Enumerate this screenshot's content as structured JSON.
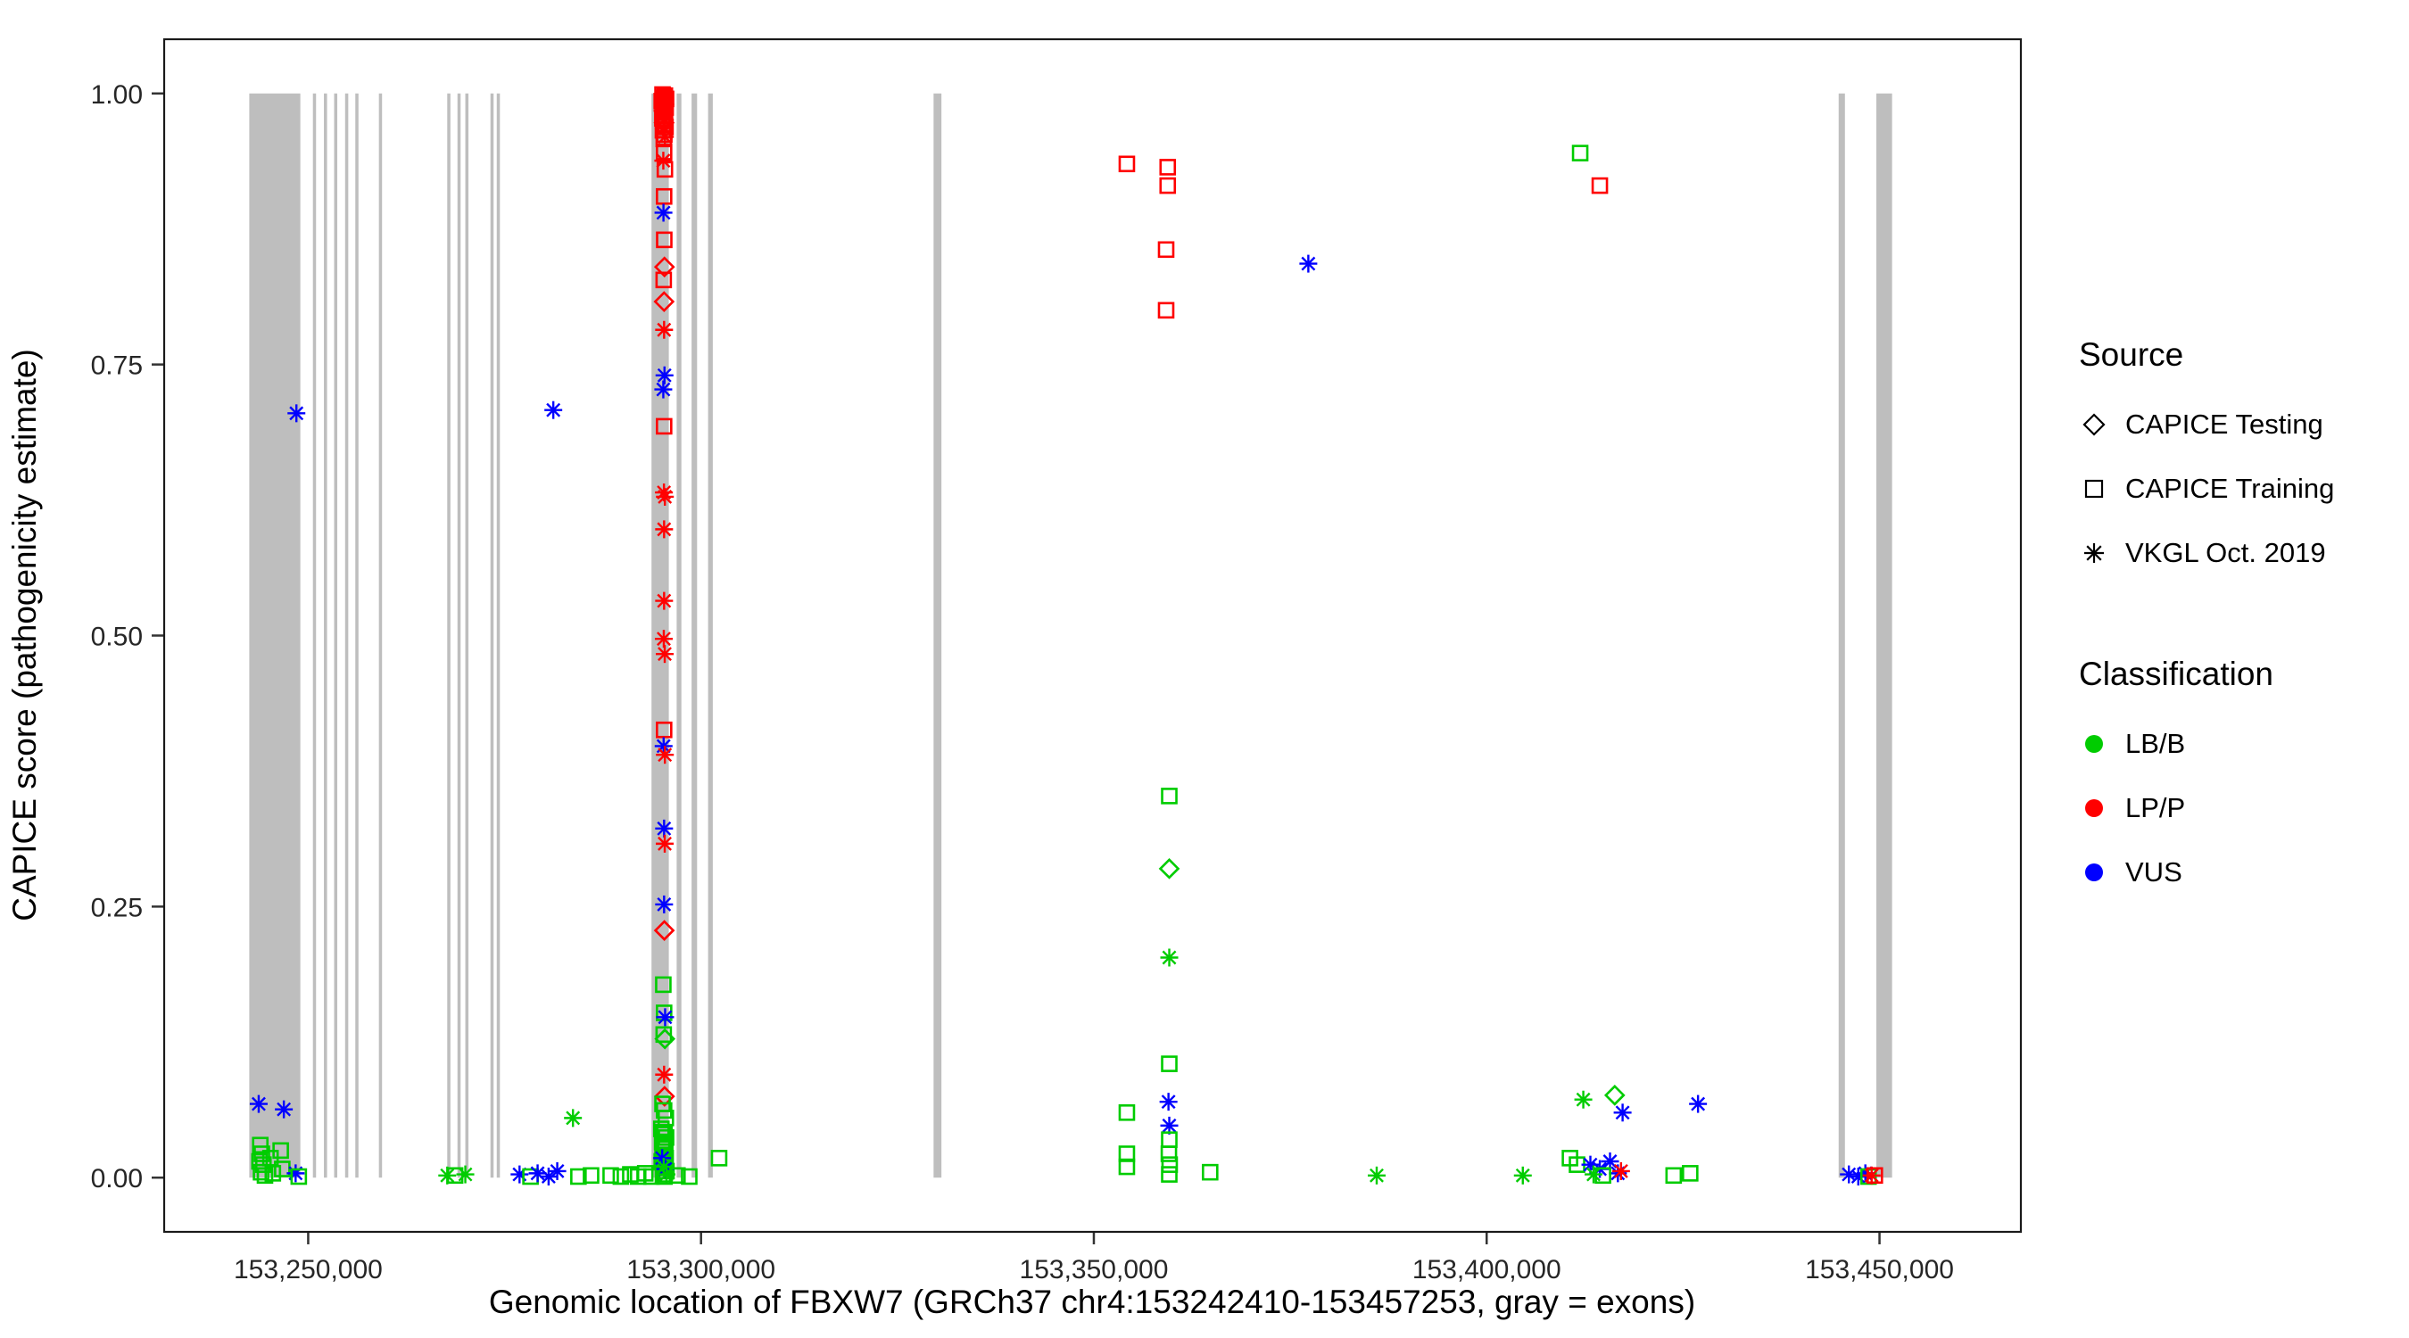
{
  "legend": {
    "source": {
      "title": "Source",
      "items": [
        {
          "label": "CAPICE Testing",
          "marker": "diamond"
        },
        {
          "label": "CAPICE Training",
          "marker": "square"
        },
        {
          "label": "VKGL Oct. 2019",
          "marker": "asterisk"
        }
      ]
    },
    "classification": {
      "title": "Classification",
      "items": [
        {
          "label": "LB/B",
          "color": "#00CC00"
        },
        {
          "label": "LP/P",
          "color": "#FF0000"
        },
        {
          "label": "VUS",
          "color": "#0000FF"
        }
      ]
    }
  },
  "chart_data": {
    "type": "scatter",
    "title": "",
    "xlabel": "Genomic location of FBXW7 (GRCh37 chr4:153242410-153457253, gray = exons)",
    "ylabel": "CAPICE score (pathogenicity estimate)",
    "x_domain": [
      153231668,
      153467995
    ],
    "y_domain": [
      -0.05,
      1.05
    ],
    "grid": false,
    "legend_position": "right",
    "xticks": [
      {
        "value": 153250000,
        "label": "153,250,000"
      },
      {
        "value": 153300000,
        "label": "153,300,000"
      },
      {
        "value": 153350000,
        "label": "153,350,000"
      },
      {
        "value": 153400000,
        "label": "153,400,000"
      },
      {
        "value": 153450000,
        "label": "153,450,000"
      }
    ],
    "yticks": [
      {
        "value": 0.0,
        "label": "0.00"
      },
      {
        "value": 0.25,
        "label": "0.25"
      },
      {
        "value": 0.5,
        "label": "0.50"
      },
      {
        "value": 0.75,
        "label": "0.75"
      },
      {
        "value": 1.0,
        "label": "1.00"
      }
    ],
    "colors": {
      "LB/B": "#00CC00",
      "LP/P": "#FF0000",
      "VUS": "#0000FF",
      "exon": "#BEBEBE"
    },
    "class_codes": {
      "B": "LB/B",
      "P": "LP/P",
      "U": "VUS"
    },
    "source_codes": {
      "T": "CAPICE Testing",
      "R": "CAPICE Training",
      "V": "VKGL Oct. 2019"
    },
    "marker_for_source": {
      "CAPICE Testing": "diamond",
      "CAPICE Training": "square",
      "VKGL Oct. 2019": "asterisk"
    },
    "exons": [
      [
        153242500,
        153249000
      ],
      [
        153250600,
        153251000
      ],
      [
        153252000,
        153252400
      ],
      [
        153253300,
        153253700
      ],
      [
        153254700,
        153255100
      ],
      [
        153256000,
        153256400
      ],
      [
        153259000,
        153259400
      ],
      [
        153267700,
        153268100
      ],
      [
        153269000,
        153269400
      ],
      [
        153270000,
        153270400
      ],
      [
        153273200,
        153273600
      ],
      [
        153274000,
        153274400
      ],
      [
        153293700,
        153295900
      ],
      [
        153296900,
        153297500
      ],
      [
        153298800,
        153299500
      ],
      [
        153300900,
        153301500
      ],
      [
        153329600,
        153330600
      ],
      [
        153444800,
        153445600
      ],
      [
        153449600,
        153451600
      ]
    ],
    "points": [
      [
        153243700,
        0.068,
        "U",
        "V"
      ],
      [
        153246900,
        0.063,
        "U",
        "V"
      ],
      [
        153243900,
        0.03,
        "B",
        "R"
      ],
      [
        153244100,
        0.022,
        "B",
        "R"
      ],
      [
        153243800,
        0.015,
        "B",
        "R"
      ],
      [
        153244300,
        0.012,
        "B",
        "R"
      ],
      [
        153244000,
        0.005,
        "B",
        "R"
      ],
      [
        153244500,
        0.002,
        "B",
        "R"
      ],
      [
        153245200,
        0.018,
        "B",
        "R"
      ],
      [
        153245500,
        0.004,
        "B",
        "R"
      ],
      [
        153246500,
        0.025,
        "B",
        "R"
      ],
      [
        153246700,
        0.008,
        "B",
        "R"
      ],
      [
        153248400,
        0.004,
        "U",
        "V"
      ],
      [
        153248800,
        0.001,
        "B",
        "R"
      ],
      [
        153248500,
        0.705,
        "U",
        "V"
      ],
      [
        153267700,
        0.002,
        "B",
        "V"
      ],
      [
        153268700,
        0.002,
        "B",
        "R"
      ],
      [
        153270000,
        0.003,
        "B",
        "V"
      ],
      [
        153276900,
        0.003,
        "U",
        "V"
      ],
      [
        153278300,
        0.001,
        "B",
        "R"
      ],
      [
        153279200,
        0.004,
        "U",
        "V"
      ],
      [
        153280600,
        0.001,
        "U",
        "V"
      ],
      [
        153281700,
        0.006,
        "U",
        "V"
      ],
      [
        153281200,
        0.708,
        "U",
        "V"
      ],
      [
        153283700,
        0.055,
        "B",
        "V"
      ],
      [
        153284400,
        0.001,
        "B",
        "R"
      ],
      [
        153286000,
        0.002,
        "B",
        "R"
      ],
      [
        153288500,
        0.002,
        "B",
        "R"
      ],
      [
        153289800,
        0.001,
        "B",
        "R"
      ],
      [
        153291000,
        0.003,
        "B",
        "R"
      ],
      [
        153292000,
        0.001,
        "B",
        "R"
      ],
      [
        153292900,
        0.004,
        "B",
        "R"
      ],
      [
        153293700,
        0.001,
        "B",
        "R"
      ],
      [
        153295100,
        0.999,
        "P",
        "R"
      ],
      [
        153295400,
        0.998,
        "P",
        "R"
      ],
      [
        153295250,
        0.996,
        "P",
        "R"
      ],
      [
        153295550,
        0.995,
        "P",
        "R"
      ],
      [
        153295000,
        0.993,
        "P",
        "R"
      ],
      [
        153295350,
        0.991,
        "P",
        "R"
      ],
      [
        153295200,
        0.989,
        "P",
        "R"
      ],
      [
        153295500,
        0.987,
        "P",
        "R"
      ],
      [
        153295120,
        0.985,
        "P",
        "R"
      ],
      [
        153295420,
        0.983,
        "P",
        "R"
      ],
      [
        153295280,
        0.98,
        "P",
        "R"
      ],
      [
        153295080,
        0.977,
        "P",
        "R"
      ],
      [
        153295380,
        0.975,
        "P",
        "R"
      ],
      [
        153295220,
        0.972,
        "P",
        "R"
      ],
      [
        153295480,
        0.969,
        "P",
        "R"
      ],
      [
        153295150,
        0.966,
        "P",
        "R"
      ],
      [
        153295330,
        0.962,
        "P",
        "R"
      ],
      [
        153295260,
        0.958,
        "P",
        "R"
      ],
      [
        153295200,
        0.997,
        "P",
        "V"
      ],
      [
        153295450,
        0.99,
        "P",
        "V"
      ],
      [
        153295100,
        0.984,
        "P",
        "V"
      ],
      [
        153295350,
        0.976,
        "P",
        "V"
      ],
      [
        153295250,
        0.968,
        "P",
        "V"
      ],
      [
        153295400,
        0.96,
        "P",
        "V"
      ],
      [
        153295300,
        0.973,
        "P",
        "T"
      ],
      [
        153295300,
        0.946,
        "P",
        "R"
      ],
      [
        153295200,
        0.938,
        "P",
        "V"
      ],
      [
        153295400,
        0.93,
        "P",
        "R"
      ],
      [
        153295300,
        0.905,
        "P",
        "R"
      ],
      [
        153295220,
        0.89,
        "U",
        "V"
      ],
      [
        153295320,
        0.865,
        "P",
        "R"
      ],
      [
        153295350,
        0.84,
        "P",
        "T"
      ],
      [
        153295250,
        0.828,
        "P",
        "R"
      ],
      [
        153295300,
        0.808,
        "P",
        "T"
      ],
      [
        153295300,
        0.782,
        "P",
        "V"
      ],
      [
        153295350,
        0.74,
        "U",
        "V"
      ],
      [
        153295200,
        0.727,
        "U",
        "V"
      ],
      [
        153295300,
        0.693,
        "P",
        "R"
      ],
      [
        153295280,
        0.632,
        "P",
        "V"
      ],
      [
        153295400,
        0.628,
        "P",
        "V"
      ],
      [
        153295300,
        0.598,
        "P",
        "V"
      ],
      [
        153295300,
        0.532,
        "P",
        "V"
      ],
      [
        153295260,
        0.497,
        "P",
        "V"
      ],
      [
        153295380,
        0.483,
        "P",
        "V"
      ],
      [
        153295300,
        0.413,
        "P",
        "R"
      ],
      [
        153295240,
        0.398,
        "U",
        "V"
      ],
      [
        153295400,
        0.39,
        "P",
        "V"
      ],
      [
        153295300,
        0.322,
        "U",
        "V"
      ],
      [
        153295380,
        0.308,
        "P",
        "V"
      ],
      [
        153295300,
        0.252,
        "U",
        "V"
      ],
      [
        153295330,
        0.228,
        "P",
        "T"
      ],
      [
        153295200,
        0.178,
        "B",
        "R"
      ],
      [
        153295300,
        0.152,
        "B",
        "R"
      ],
      [
        153295430,
        0.148,
        "U",
        "V"
      ],
      [
        153295250,
        0.132,
        "B",
        "R"
      ],
      [
        153295400,
        0.128,
        "B",
        "T"
      ],
      [
        153295300,
        0.095,
        "P",
        "V"
      ],
      [
        153295360,
        0.075,
        "P",
        "T"
      ],
      [
        153295100,
        0.068,
        "B",
        "R"
      ],
      [
        153295300,
        0.062,
        "B",
        "R"
      ],
      [
        153295520,
        0.055,
        "B",
        "R"
      ],
      [
        153294950,
        0.045,
        "B",
        "R"
      ],
      [
        153295150,
        0.042,
        "B",
        "R"
      ],
      [
        153295350,
        0.04,
        "B",
        "R"
      ],
      [
        153295550,
        0.037,
        "B",
        "R"
      ],
      [
        153295050,
        0.033,
        "B",
        "R"
      ],
      [
        153295250,
        0.03,
        "B",
        "R"
      ],
      [
        153295450,
        0.027,
        "B",
        "R"
      ],
      [
        153295100,
        0.024,
        "B",
        "R"
      ],
      [
        153295300,
        0.021,
        "B",
        "R"
      ],
      [
        153295500,
        0.018,
        "B",
        "R"
      ],
      [
        153295000,
        0.015,
        "B",
        "R"
      ],
      [
        153295200,
        0.012,
        "B",
        "R"
      ],
      [
        153295400,
        0.009,
        "B",
        "R"
      ],
      [
        153295600,
        0.006,
        "B",
        "R"
      ],
      [
        153295150,
        0.003,
        "B",
        "R"
      ],
      [
        153295350,
        0.001,
        "B",
        "R"
      ],
      [
        153295050,
        0.018,
        "U",
        "V"
      ],
      [
        153295450,
        0.008,
        "U",
        "V"
      ],
      [
        153295250,
        0.01,
        "B",
        "V"
      ],
      [
        153295600,
        0.003,
        "B",
        "V"
      ],
      [
        153297000,
        0.002,
        "B",
        "R"
      ],
      [
        153298500,
        0.001,
        "B",
        "R"
      ],
      [
        153302300,
        0.018,
        "B",
        "R"
      ],
      [
        153354200,
        0.935,
        "P",
        "R"
      ],
      [
        153359400,
        0.932,
        "P",
        "R"
      ],
      [
        153359400,
        0.915,
        "P",
        "R"
      ],
      [
        153359200,
        0.856,
        "P",
        "R"
      ],
      [
        153359200,
        0.8,
        "P",
        "R"
      ],
      [
        153359600,
        0.352,
        "B",
        "R"
      ],
      [
        153359600,
        0.285,
        "B",
        "T"
      ],
      [
        153359600,
        0.203,
        "B",
        "V"
      ],
      [
        153359600,
        0.105,
        "B",
        "R"
      ],
      [
        153354200,
        0.06,
        "B",
        "R"
      ],
      [
        153359500,
        0.07,
        "U",
        "V"
      ],
      [
        153359600,
        0.048,
        "U",
        "V"
      ],
      [
        153359600,
        0.035,
        "B",
        "R"
      ],
      [
        153359550,
        0.022,
        "B",
        "R"
      ],
      [
        153359650,
        0.012,
        "B",
        "R"
      ],
      [
        153359600,
        0.003,
        "B",
        "R"
      ],
      [
        153354200,
        0.022,
        "B",
        "R"
      ],
      [
        153354200,
        0.01,
        "B",
        "R"
      ],
      [
        153364800,
        0.005,
        "B",
        "R"
      ],
      [
        153377300,
        0.843,
        "U",
        "V"
      ],
      [
        153386000,
        0.002,
        "B",
        "V"
      ],
      [
        153404600,
        0.002,
        "B",
        "V"
      ],
      [
        153411900,
        0.945,
        "B",
        "R"
      ],
      [
        153414400,
        0.915,
        "P",
        "R"
      ],
      [
        153412300,
        0.072,
        "B",
        "V"
      ],
      [
        153416300,
        0.076,
        "B",
        "T"
      ],
      [
        153417300,
        0.06,
        "U",
        "V"
      ],
      [
        153426900,
        0.068,
        "U",
        "V"
      ],
      [
        153410600,
        0.018,
        "B",
        "R"
      ],
      [
        153411500,
        0.012,
        "B",
        "R"
      ],
      [
        153413200,
        0.012,
        "U",
        "V"
      ],
      [
        153414400,
        0.008,
        "U",
        "V"
      ],
      [
        153415700,
        0.015,
        "U",
        "V"
      ],
      [
        153416700,
        0.004,
        "U",
        "V"
      ],
      [
        153417100,
        0.006,
        "P",
        "V"
      ],
      [
        153414800,
        0.002,
        "B",
        "R"
      ],
      [
        153413600,
        0.003,
        "B",
        "V"
      ],
      [
        153425900,
        0.004,
        "B",
        "R"
      ],
      [
        153423800,
        0.002,
        "B",
        "R"
      ],
      [
        153446100,
        0.003,
        "U",
        "V"
      ],
      [
        153447300,
        0.001,
        "U",
        "V"
      ],
      [
        153448200,
        0.004,
        "U",
        "V"
      ],
      [
        153448600,
        0.001,
        "B",
        "R"
      ],
      [
        153449000,
        0.002,
        "P",
        "V"
      ],
      [
        153449400,
        0.002,
        "P",
        "R"
      ]
    ]
  }
}
